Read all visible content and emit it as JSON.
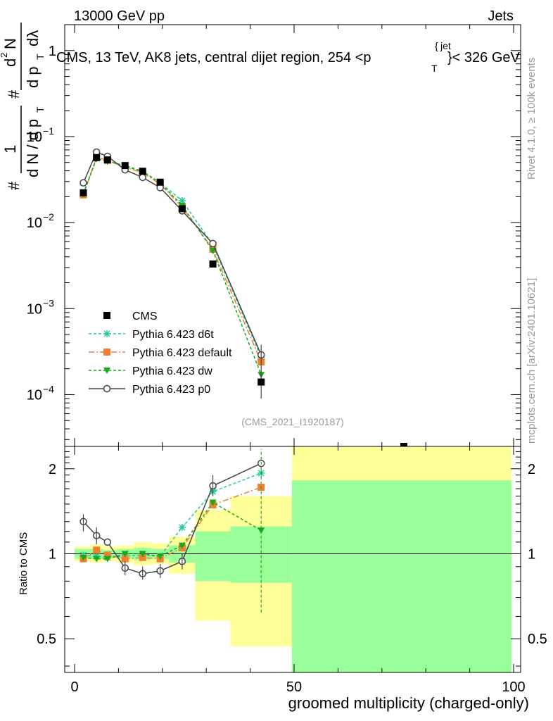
{
  "header": {
    "left": "13000 GeV pp",
    "right": "Jets"
  },
  "title_main": "CMS, 13 TeV, AK8 jets, central dijet region, 254 <p",
  "title_sup": "jet",
  "title_sub": "T",
  "title_tail": "}< 326 GeV",
  "title_brace": "{",
  "side_labels": {
    "rivet": "Rivet 4.1.0, ≥ 100k events",
    "mcplots": "mcplots.cern.ch [arXiv:2401.10621]"
  },
  "analysis_id": "(CMS_2021_I1920187)",
  "ylabel_top": {
    "hash": "#",
    "one": "1",
    "den": "d N / d p",
    "den_sub": "T",
    "hash2": "#",
    "num2_top": "d",
    "num2_sup": "2",
    "num2_N": "N",
    "den2": "d p",
    "den2_sub": "T",
    "den2_tail": "dλ"
  },
  "ylabel_bottom": "Ratio to CMS",
  "xlabel": "groomed multiplicity (charged-only)",
  "top_yticks": [
    {
      "value": 1,
      "base": "1",
      "exp": ""
    },
    {
      "value": 0.1,
      "base": "10",
      "exp": "−1"
    },
    {
      "value": 0.01,
      "base": "10",
      "exp": "−2"
    },
    {
      "value": 0.001,
      "base": "10",
      "exp": "−3"
    },
    {
      "value": 0.0001,
      "base": "10",
      "exp": "−4"
    }
  ],
  "bottom_yticks": [
    "0.5",
    "1",
    "2"
  ],
  "xticks": [
    "0",
    "50",
    "100"
  ],
  "legend": [
    {
      "name": "CMS",
      "color": "#000000",
      "marker": "square",
      "dash": ""
    },
    {
      "name": "Pythia 6.423 d6t",
      "color": "#1fc9a0",
      "marker": "star",
      "dash": "4,3"
    },
    {
      "name": "Pythia 6.423 default",
      "color": "#f07f30",
      "marker": "square",
      "dash": "8,3,2,3"
    },
    {
      "name": "Pythia 6.423 dw",
      "color": "#1aa81a",
      "marker": "tri",
      "dash": "4,3"
    },
    {
      "name": "Pythia 6.423 p0",
      "color": "#444444",
      "marker": "circle",
      "dash": ""
    }
  ],
  "chart_data": {
    "type": "line",
    "x_range": [
      -2,
      100
    ],
    "top_ylim": [
      2.5e-05,
      2
    ],
    "top_yscale": "log",
    "bottom_ylim": [
      0.38,
      2.4
    ],
    "bottom_yscale": "log",
    "x": [
      2,
      5,
      7.5,
      11.5,
      15.5,
      19.5,
      24.5,
      31.5,
      42.5
    ],
    "cms": {
      "values": [
        0.0222,
        0.057,
        0.0535,
        0.046,
        0.0395,
        0.0295,
        0.0145,
        0.0033,
        0.00014
      ],
      "extra_point": {
        "x": 75,
        "note": "offscale"
      }
    },
    "series": [
      {
        "name": "Pythia 6.423 d6t",
        "values": [
          0.022,
          0.056,
          0.052,
          0.045,
          0.039,
          0.029,
          0.018,
          0.0055,
          0.00027
        ]
      },
      {
        "name": "Pythia 6.423 default",
        "values": [
          0.021,
          0.058,
          0.053,
          0.044,
          0.038,
          0.028,
          0.0152,
          0.0049,
          0.00024
        ]
      },
      {
        "name": "Pythia 6.423 dw",
        "values": [
          0.0215,
          0.055,
          0.0515,
          0.046,
          0.0395,
          0.029,
          0.0158,
          0.0047,
          0.00017
        ]
      },
      {
        "name": "Pythia 6.423 p0",
        "values": [
          0.029,
          0.066,
          0.059,
          0.041,
          0.0335,
          0.0255,
          0.0137,
          0.0057,
          0.00029
        ]
      }
    ],
    "ratio": {
      "x": [
        2,
        5,
        7.5,
        11.5,
        15.5,
        19.5,
        24.5,
        31.5,
        42.5
      ],
      "series": [
        {
          "name": "Pythia 6.423 d6t",
          "values": [
            0.99,
            0.98,
            0.97,
            0.98,
            0.99,
            0.98,
            1.24,
            1.66,
            1.93
          ]
        },
        {
          "name": "Pythia 6.423 default",
          "values": [
            0.96,
            1.03,
            0.99,
            0.96,
            0.97,
            0.96,
            1.05,
            1.49,
            1.72
          ]
        },
        {
          "name": "Pythia 6.423 dw",
          "values": [
            0.97,
            0.96,
            0.96,
            1.0,
            1.0,
            0.98,
            1.07,
            1.52,
            1.21
          ]
        },
        {
          "name": "Pythia 6.423 p0",
          "values": [
            1.3,
            1.16,
            1.1,
            0.89,
            0.85,
            0.87,
            0.94,
            1.74,
            2.09
          ]
        }
      ],
      "bands": [
        {
          "x0": 0,
          "x1": 3.5,
          "yellow": [
            0.94,
            1.06
          ],
          "green": [
            0.96,
            1.04
          ]
        },
        {
          "x0": 3.5,
          "x1": 6.5,
          "yellow": [
            0.93,
            1.08
          ],
          "green": [
            0.96,
            1.04
          ]
        },
        {
          "x0": 6.5,
          "x1": 9.5,
          "yellow": [
            0.94,
            1.06
          ],
          "green": [
            0.97,
            1.03
          ]
        },
        {
          "x0": 9.5,
          "x1": 13.5,
          "yellow": [
            0.93,
            1.07
          ],
          "green": [
            0.96,
            1.04
          ]
        },
        {
          "x0": 13.5,
          "x1": 17.5,
          "yellow": [
            0.91,
            1.1
          ],
          "green": [
            0.95,
            1.05
          ]
        },
        {
          "x0": 17.5,
          "x1": 21.5,
          "yellow": [
            0.92,
            1.09
          ],
          "green": [
            0.96,
            1.04
          ]
        },
        {
          "x0": 21.5,
          "x1": 27.5,
          "yellow": [
            0.85,
            1.15
          ],
          "green": [
            0.93,
            1.07
          ]
        },
        {
          "x0": 27.5,
          "x1": 35.5,
          "yellow": [
            0.58,
            1.43
          ],
          "green": [
            0.8,
            1.2
          ]
        },
        {
          "x0": 35.5,
          "x1": 49.5,
          "yellow": [
            0.47,
            1.6
          ],
          "green": [
            0.79,
            1.25
          ]
        },
        {
          "x0": 49.5,
          "x1": 99.5,
          "yellow": [
            0.37,
            2.4
          ],
          "green": [
            0.37,
            1.82
          ]
        }
      ]
    }
  }
}
